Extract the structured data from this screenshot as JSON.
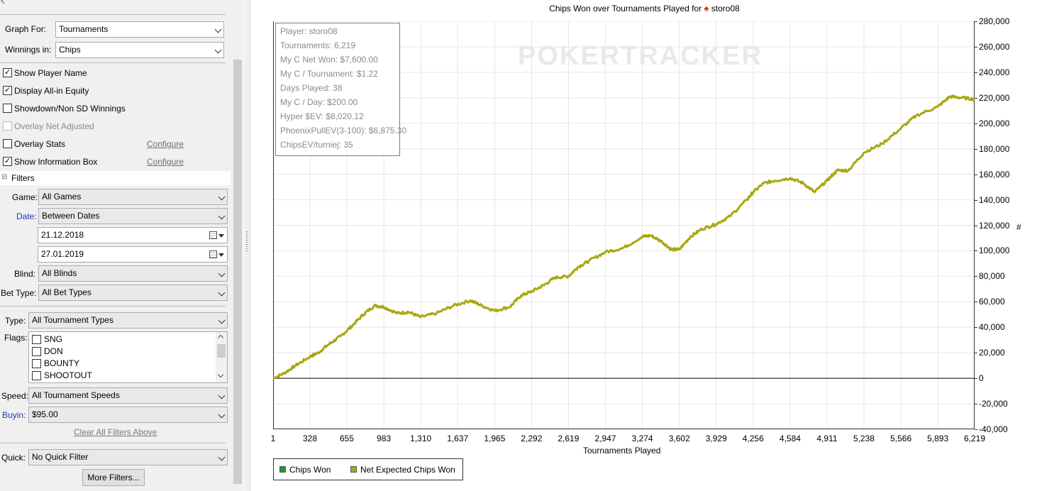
{
  "left_panel": {
    "graph_for_label": "Graph For:",
    "graph_for_value": "Tournaments",
    "winnings_in_label": "Winnings in:",
    "winnings_in_value": "Chips",
    "options": {
      "show_player_name": "Show Player Name",
      "display_allin_equity": "Display All-in Equity",
      "showdown_nonsd": "Showdown/Non SD Winnings",
      "overlay_net_adjusted": "Overlay Net Adjusted",
      "overlay_stats": "Overlay Stats",
      "show_information_box": "Show Information Box",
      "configure": "Configure"
    },
    "filters": {
      "section_title": "Filters",
      "collapse_glyph": "⊟",
      "game_label": "Game:",
      "game_value": "All Games",
      "date_label": "Date:",
      "date_value": "Between Dates",
      "date_from": "21.12.2018",
      "date_to": "27.01.2019",
      "blind_label": "Blind:",
      "blind_value": "All Blinds",
      "bet_type_label": "Bet Type:",
      "bet_type_value": "All Bet Types",
      "type_label": "Type:",
      "type_value": "All Tournament Types",
      "flags_label": "Flags:",
      "flags": [
        "SNG",
        "DON",
        "BOUNTY",
        "SHOOTOUT"
      ],
      "speed_label": "Speed:",
      "speed_value": "All Tournament Speeds",
      "buyin_label": "Buyin:",
      "buyin_value": "$95.00",
      "clear_all": "Clear All Filters Above",
      "quick_label": "Quick:",
      "quick_value": "No Quick Filter",
      "more_filters": "More Filters..."
    }
  },
  "chart_title": {
    "prefix": "Chips Won over Tournaments Played for",
    "spade": "♠",
    "player": "storo08"
  },
  "watermark": "POKERTRACKER",
  "info_box": [
    "Player: storo08",
    "Tournaments: 6,219",
    "My C Net Won: $7,600.00",
    "My C / Tournament: $1.22",
    "Days Played: 38",
    "My C / Day: $200.00",
    "Hyper $EV: $8,020.12",
    "PhoenixPullEV(3-100): $6,875.30",
    "ChipsEV/turniej: 35"
  ],
  "colors": {
    "series_line": "#a8a810",
    "chips_won_swatch": "#1f9a2a",
    "net_expected_swatch": "#a8a810",
    "grid": "#e6e6e6",
    "panel_bg": "#f0f0f0"
  },
  "chart_data": {
    "type": "line",
    "xlabel": "Tournaments Played",
    "ylabel": "#",
    "xlim": [
      1,
      6219
    ],
    "ylim": [
      -40000,
      280000
    ],
    "x_ticks": [
      "1",
      "328",
      "655",
      "983",
      "1,310",
      "1,637",
      "1,965",
      "2,292",
      "2,619",
      "2,947",
      "3,274",
      "3,602",
      "3,929",
      "4,256",
      "4,584",
      "4,911",
      "5,238",
      "5,566",
      "5,893",
      "6,219"
    ],
    "y_ticks": [
      "280,000",
      "260,000",
      "240,000",
      "220,000",
      "200,000",
      "180,000",
      "160,000",
      "140,000",
      "120,000",
      "100,000",
      "80,000",
      "60,000",
      "40,000",
      "20,000",
      "0",
      "-20,000",
      "-40,000"
    ],
    "legend": [
      "Chips Won",
      "Net Expected Chips Won"
    ],
    "legend_position": "bottom-left",
    "grid": true,
    "series": [
      {
        "name": "Net Expected Chips Won",
        "x": [
          1,
          100,
          200,
          328,
          400,
          500,
          600,
          700,
          800,
          900,
          983,
          1100,
          1200,
          1310,
          1450,
          1600,
          1750,
          1850,
          1965,
          2100,
          2200,
          2292,
          2400,
          2500,
          2619,
          2700,
          2800,
          2947,
          3100,
          3274,
          3350,
          3450,
          3530,
          3602,
          3700,
          3800,
          3929,
          4050,
          4200,
          4256,
          4350,
          4450,
          4584,
          4700,
          4800,
          4911,
          5000,
          5100,
          5238,
          5400,
          5566,
          5700,
          5893,
          6000,
          6100,
          6219
        ],
        "y": [
          0,
          4000,
          10000,
          17000,
          20000,
          27000,
          33000,
          41000,
          50000,
          57000,
          56000,
          51000,
          52000,
          48000,
          51000,
          57000,
          61000,
          57000,
          53000,
          56000,
          65000,
          68000,
          73000,
          79000,
          80000,
          87000,
          92000,
          99000,
          102000,
          111000,
          112000,
          107000,
          101000,
          101000,
          111000,
          117000,
          121000,
          127000,
          140000,
          146000,
          153000,
          155000,
          157000,
          153000,
          146000,
          155000,
          163000,
          163000,
          177000,
          184000,
          196000,
          206000,
          213000,
          221000,
          220000,
          219000
        ]
      }
    ]
  }
}
